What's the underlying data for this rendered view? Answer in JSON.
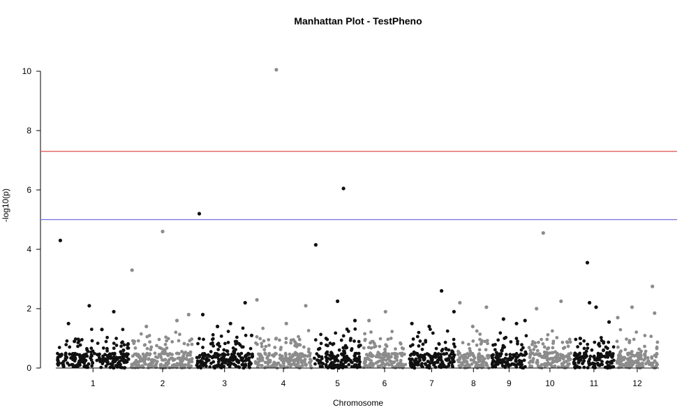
{
  "chart_data": {
    "type": "scatter",
    "title": "Manhattan Plot - TestPheno",
    "xlabel": "Chromosome",
    "ylabel": "-log10(p)",
    "ylim": [
      0,
      10.5
    ],
    "yticks": [
      0,
      2,
      4,
      6,
      8,
      10
    ],
    "grid": false,
    "chromosomes": [
      {
        "label": "1",
        "colorIndex": 0,
        "points": [
          [
            0.06,
            4.3
          ],
          [
            0.17,
            1.5
          ],
          [
            0.25,
            0.9
          ],
          [
            0.45,
            2.1
          ],
          [
            0.62,
            1.3
          ],
          [
            0.78,
            1.9
          ],
          [
            0.91,
            0.6
          ]
        ]
      },
      {
        "label": "2",
        "colorIndex": 1,
        "points": [
          [
            0.03,
            3.3
          ],
          [
            0.25,
            1.4
          ],
          [
            0.5,
            4.6
          ],
          [
            0.72,
            1.6
          ],
          [
            0.9,
            1.8
          ]
        ]
      },
      {
        "label": "3",
        "colorIndex": 0,
        "points": [
          [
            0.07,
            5.2
          ],
          [
            0.13,
            1.8
          ],
          [
            0.38,
            1.4
          ],
          [
            0.6,
            1.5
          ],
          [
            0.85,
            2.2
          ],
          [
            0.96,
            1.1
          ]
        ]
      },
      {
        "label": "4",
        "colorIndex": 1,
        "points": [
          [
            0.05,
            2.3
          ],
          [
            0.38,
            10.05
          ],
          [
            0.55,
            1.5
          ],
          [
            0.88,
            2.1
          ]
        ]
      },
      {
        "label": "5",
        "colorIndex": 0,
        "points": [
          [
            0.06,
            4.15
          ],
          [
            0.5,
            2.25
          ],
          [
            0.62,
            6.05
          ],
          [
            0.85,
            1.6
          ]
        ]
      },
      {
        "label": "6",
        "colorIndex": 1,
        "points": [
          [
            0.15,
            1.6
          ],
          [
            0.52,
            1.9
          ]
        ]
      },
      {
        "label": "7",
        "colorIndex": 0,
        "points": [
          [
            0.1,
            1.5
          ],
          [
            0.45,
            1.4
          ],
          [
            0.7,
            2.6
          ],
          [
            0.95,
            1.9
          ]
        ]
      },
      {
        "label": "8",
        "colorIndex": 1,
        "points": [
          [
            0.1,
            2.2
          ],
          [
            0.48,
            1.4
          ],
          [
            0.88,
            2.05
          ]
        ]
      },
      {
        "label": "9",
        "colorIndex": 0,
        "points": [
          [
            0.35,
            1.65
          ],
          [
            0.7,
            1.5
          ],
          [
            0.93,
            1.6
          ]
        ]
      },
      {
        "label": "10",
        "colorIndex": 1,
        "points": [
          [
            0.2,
            2.0
          ],
          [
            0.35,
            4.55
          ],
          [
            0.75,
            2.25
          ]
        ]
      },
      {
        "label": "11",
        "colorIndex": 0,
        "points": [
          [
            0.35,
            3.55
          ],
          [
            0.4,
            2.2
          ],
          [
            0.55,
            2.05
          ],
          [
            0.85,
            1.55
          ]
        ]
      },
      {
        "label": "12",
        "colorIndex": 1,
        "points": [
          [
            0.05,
            1.7
          ],
          [
            0.38,
            2.05
          ],
          [
            0.85,
            2.75
          ],
          [
            0.9,
            1.85
          ]
        ]
      }
    ],
    "reference_lines": [
      {
        "y": 7.3,
        "color": "#e05050"
      },
      {
        "y": 5.0,
        "color": "#7070dd"
      }
    ],
    "colors": {
      "dark": "#111111",
      "light": "#8c8c8c"
    }
  }
}
